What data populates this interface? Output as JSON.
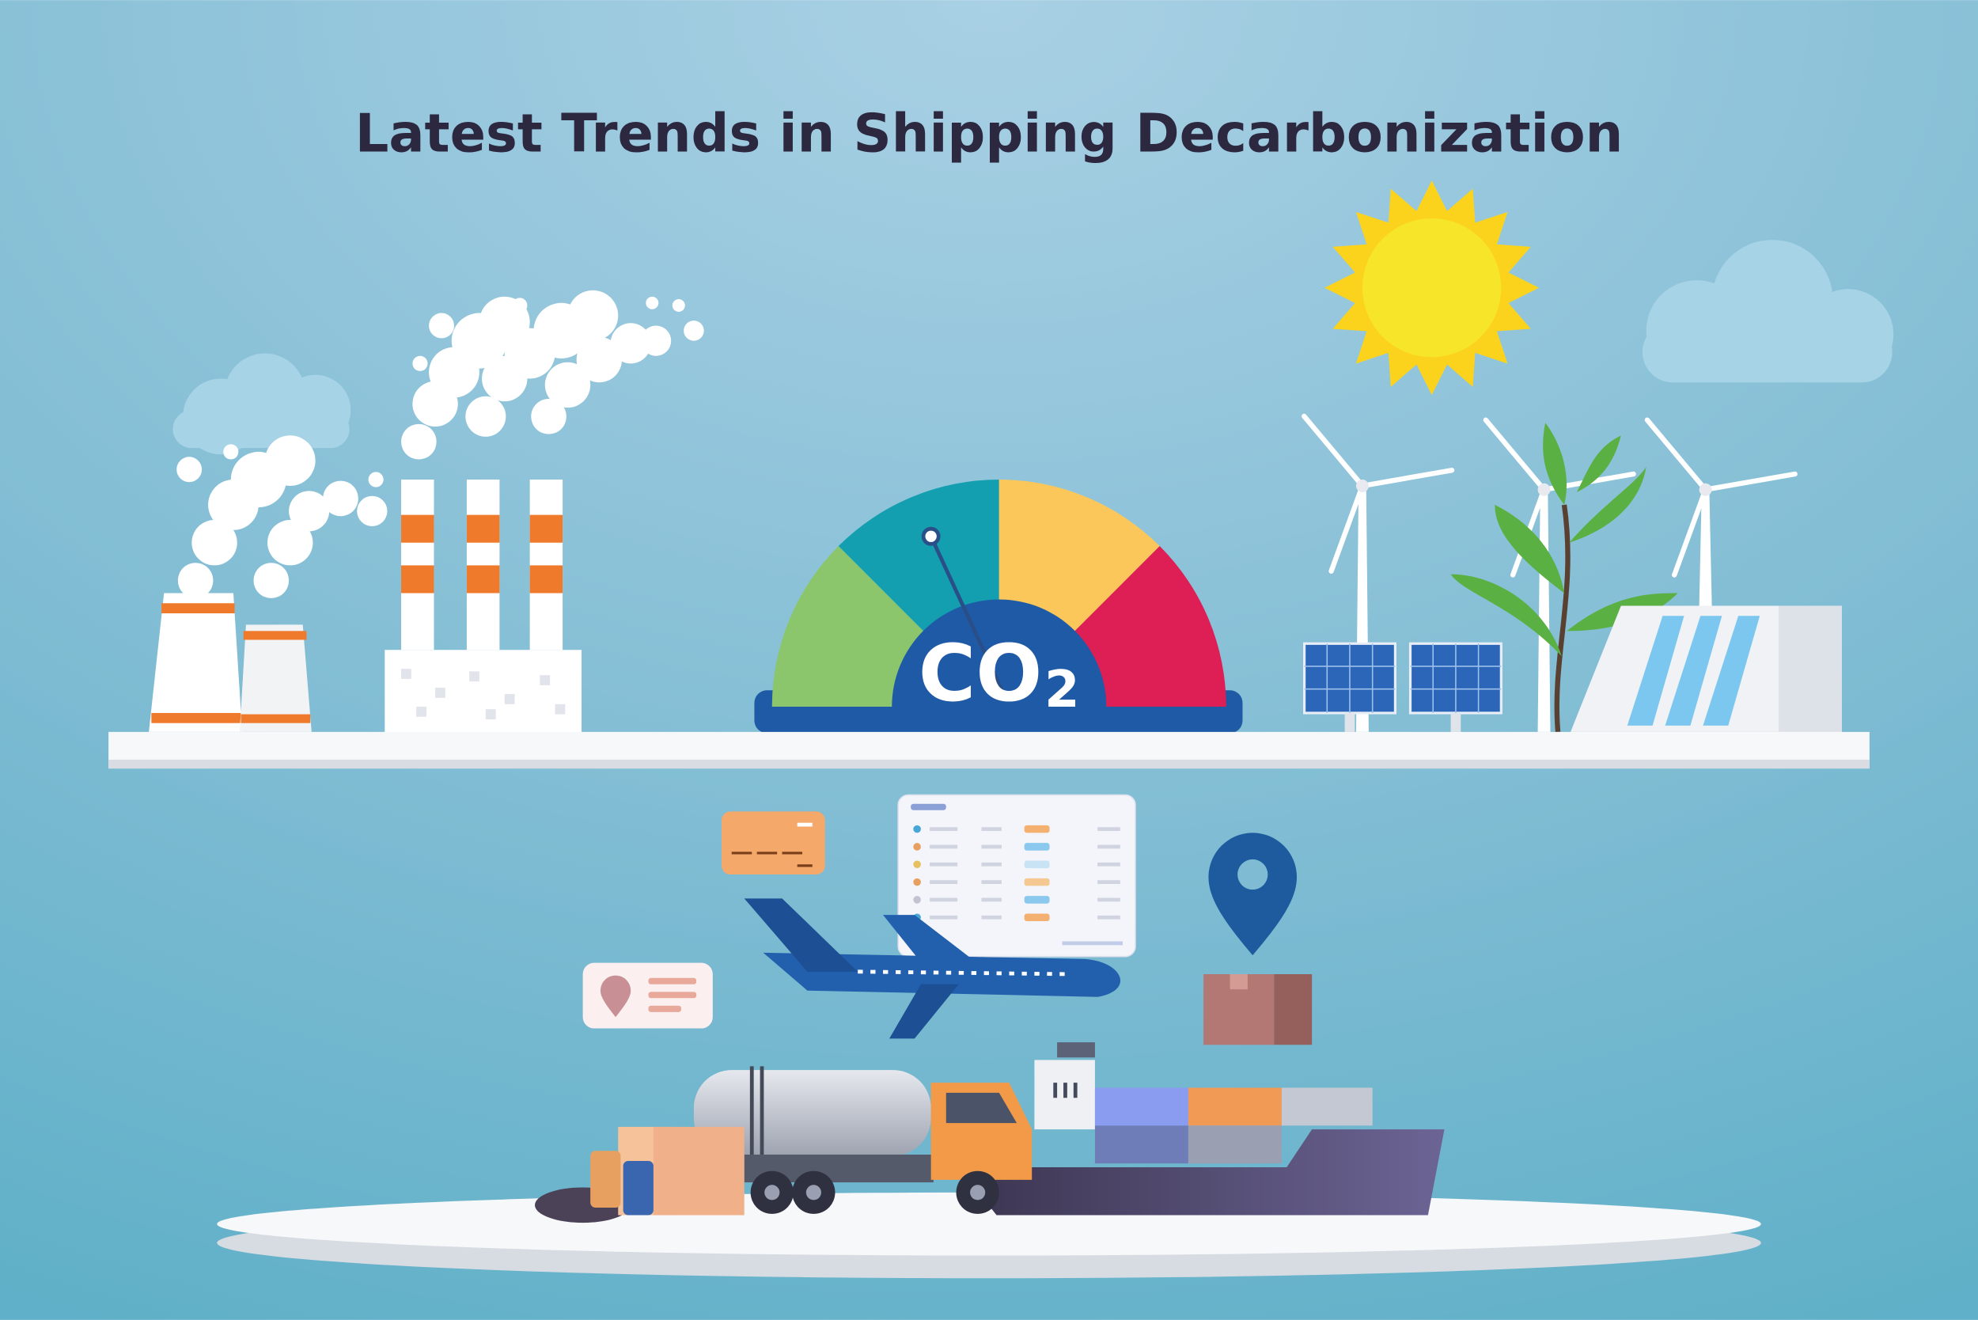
{
  "title": "Latest Trends in Shipping Decarbonization",
  "gauge": {
    "label": "CO",
    "subscript": "2"
  }
}
